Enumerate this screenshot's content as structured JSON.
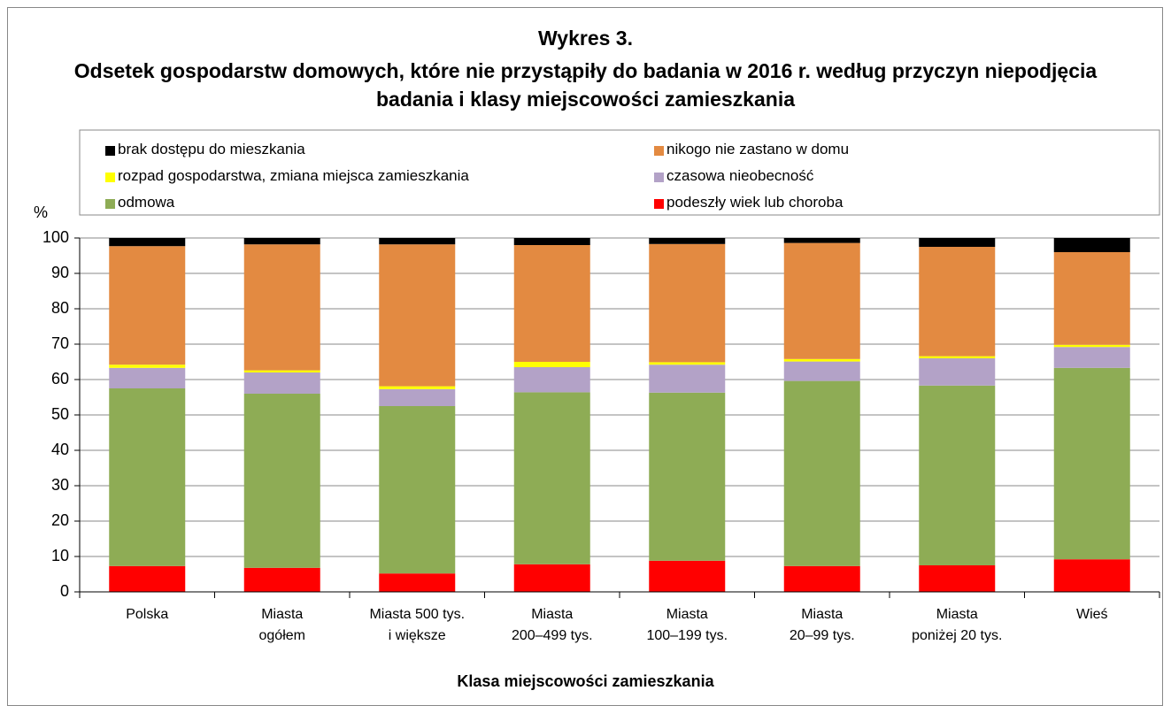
{
  "chart_data": {
    "type": "stacked_bar",
    "title": "Wykres 3.",
    "subtitle": "Odsetek gospodarstw domowych, które nie przystąpiły do badania w 2016 r. według przyczyn niepodjęcia badania i klasy miejscowości zamieszkania",
    "y_label": "%",
    "x_label": "Klasa miejscowości zamieszkania",
    "categories": [
      "Polska",
      "Miasta\nogółem",
      "Miasta 500 tys.\ni większe",
      "Miasta\n200–499 tys.",
      "Miasta\n100–199 tys.",
      "Miasta\n20–99 tys.",
      "Miasta\nponiżej 20 tys.",
      "Wieś"
    ],
    "series": [
      {
        "name": "brak dostępu do mieszkania",
        "color": "#000000",
        "values": [
          2.3,
          1.8,
          1.8,
          2.0,
          1.7,
          1.4,
          2.5,
          4.0
        ]
      },
      {
        "name": "nikogo nie zastano w domu",
        "color": "#e38a41",
        "values": [
          33.5,
          35.6,
          40.1,
          33.0,
          33.4,
          32.8,
          30.9,
          26.2
        ]
      },
      {
        "name": "rozpad gospodarstwa, zmiana miejsca zamieszkania",
        "color": "#ffff00",
        "values": [
          0.9,
          0.6,
          0.8,
          1.5,
          0.7,
          0.7,
          0.6,
          0.6
        ]
      },
      {
        "name": "czasowa nieobecność",
        "color": "#b3a2c7",
        "values": [
          5.8,
          6.0,
          4.8,
          7.1,
          7.9,
          5.5,
          7.7,
          5.9
        ]
      },
      {
        "name": "odmowa",
        "color": "#8eac55",
        "values": [
          50.2,
          49.2,
          47.3,
          48.6,
          47.5,
          52.3,
          50.8,
          54.1
        ]
      },
      {
        "name": "podeszły wiek lub choroba",
        "color": "#ff0000",
        "values": [
          7.3,
          6.8,
          5.2,
          7.8,
          8.8,
          7.3,
          7.5,
          9.2
        ]
      }
    ],
    "ylim": [
      0,
      100
    ],
    "yticks": [
      0,
      10,
      20,
      30,
      40,
      50,
      60,
      70,
      80,
      90,
      100
    ],
    "grid": true
  }
}
